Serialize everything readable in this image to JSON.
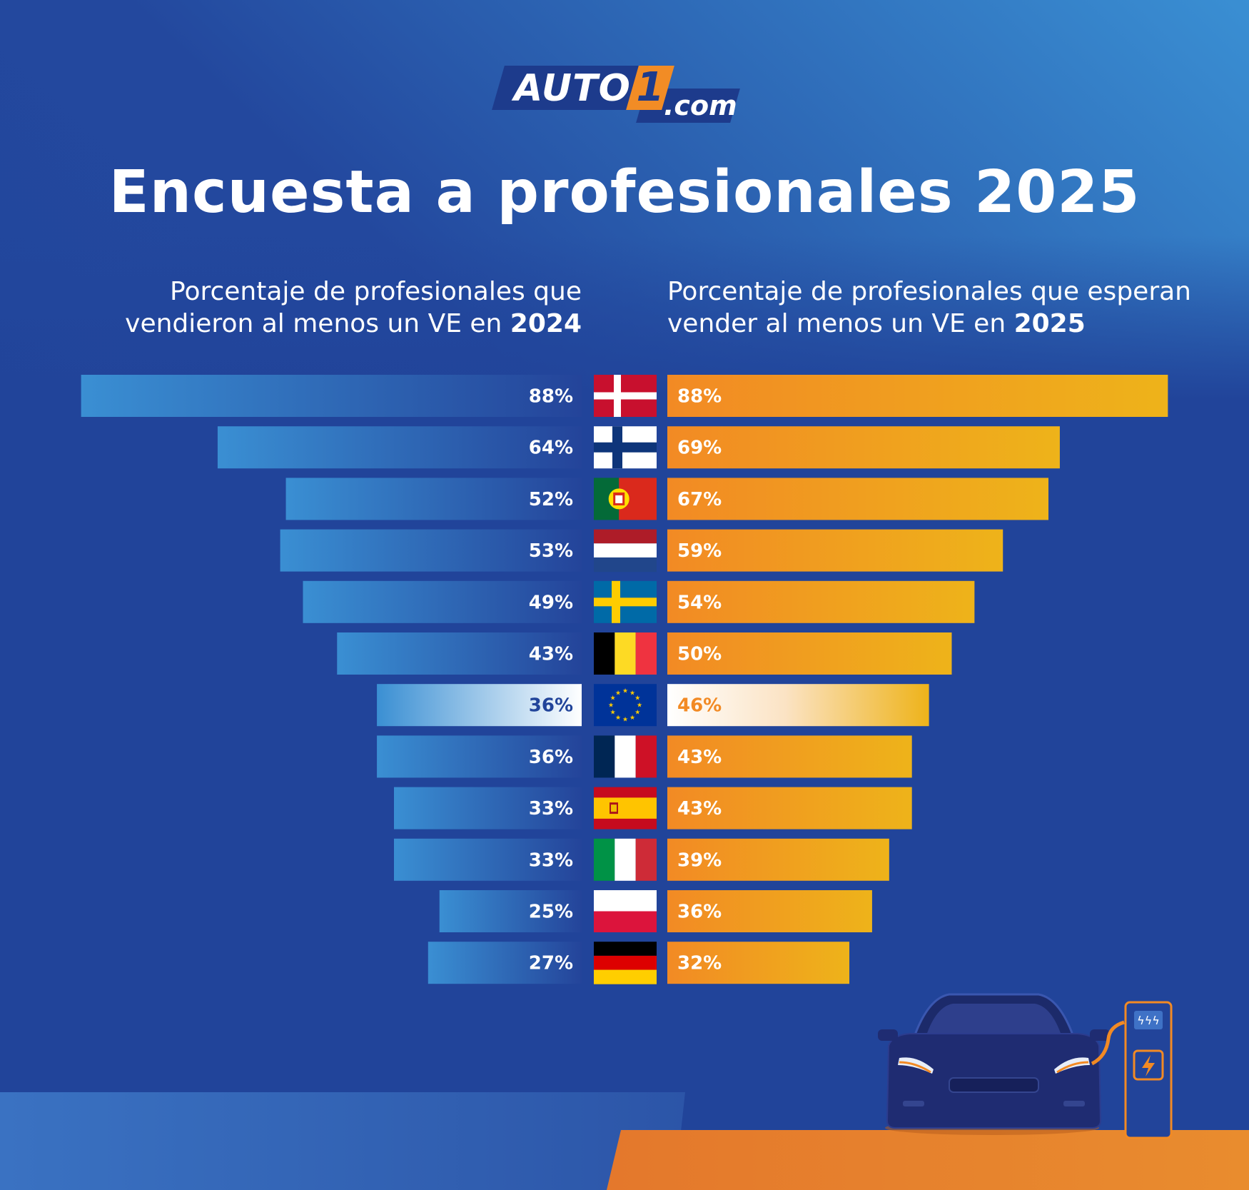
{
  "brand": {
    "logo_text": "AUTO",
    "logo_number": "1",
    "logo_domain": ".com"
  },
  "header": {
    "title": "Encuesta a profesionales 2025",
    "left_subtitle_line1": "Porcentaje de profesionales que",
    "left_subtitle_line2": "vendieron al menos un VE en ",
    "left_subtitle_year": "2024",
    "right_subtitle_line1": "Porcentaje de profesionales que esperan",
    "right_subtitle_line2": "vender al menos un VE en ",
    "right_subtitle_year": "2025"
  },
  "colors": {
    "background": "#21449a",
    "left_bar_start": "#3a8fd3",
    "left_bar_end": "#24449a",
    "right_bar_start": "#f28a24",
    "right_bar_end": "#eeb31a",
    "highlight_text_left": "#21449a",
    "highlight_text_right": "#f28a24",
    "ground_orange": "#e08030"
  },
  "chart_data": {
    "type": "bar",
    "layout": "butterfly",
    "categories": [
      "Dinamarca",
      "Finlandia",
      "Portugal",
      "Países Bajos",
      "Suecia",
      "Bélgica",
      "UE",
      "Francia",
      "España",
      "Italia",
      "Polonia",
      "Alemania"
    ],
    "flag_icons": [
      "flag-denmark-icon",
      "flag-finland-icon",
      "flag-portugal-icon",
      "flag-netherlands-icon",
      "flag-sweden-icon",
      "flag-belgium-icon",
      "flag-eu-icon",
      "flag-france-icon",
      "flag-spain-icon",
      "flag-italy-icon",
      "flag-poland-icon",
      "flag-germany-icon"
    ],
    "highlight_index": 6,
    "series": [
      {
        "values": [
          88,
          64,
          52,
          53,
          49,
          43,
          36,
          36,
          33,
          33,
          25,
          27
        ],
        "labels": [
          "88%",
          "64%",
          "52%",
          "53%",
          "49%",
          "43%",
          "36%",
          "36%",
          "33%",
          "33%",
          "25%",
          "27%"
        ]
      },
      {
        "values": [
          88,
          69,
          67,
          59,
          54,
          50,
          46,
          43,
          43,
          39,
          36,
          32
        ],
        "labels": [
          "88%",
          "69%",
          "67%",
          "59%",
          "54%",
          "50%",
          "46%",
          "43%",
          "43%",
          "39%",
          "36%",
          "32%"
        ]
      }
    ],
    "value_unit": "%",
    "xlim": [
      0,
      100
    ]
  },
  "illustration": {
    "car_icon": "electric-car-icon",
    "charger_icon": "charging-station-icon",
    "bolt_icon": "lightning-bolt-icon"
  }
}
